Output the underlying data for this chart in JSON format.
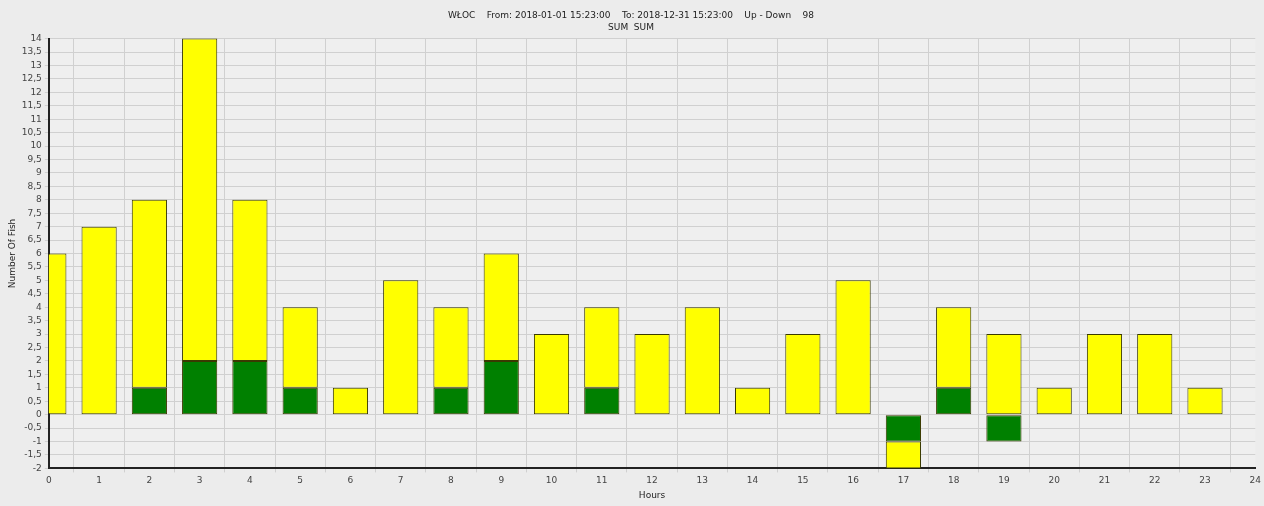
{
  "chart_data": {
    "type": "bar",
    "title": "WŁOC    From: 2018-01-01 15:23:00    To: 2018-12-31 15:23:00    Up - Down    98",
    "subtitle": "SUM  SUM",
    "xlabel": "Hours",
    "ylabel": "Number Of Fish",
    "x": [
      0,
      1,
      2,
      3,
      4,
      5,
      6,
      7,
      8,
      9,
      10,
      11,
      12,
      13,
      14,
      15,
      16,
      17,
      18,
      19,
      20,
      21,
      22,
      23
    ],
    "stacked": true,
    "series": [
      {
        "color": "#008000",
        "values": [
          null,
          null,
          1,
          2,
          2,
          1,
          null,
          null,
          1,
          2,
          null,
          1,
          null,
          null,
          null,
          null,
          null,
          -1,
          1,
          -1,
          null,
          null,
          null,
          null
        ]
      },
      {
        "color": "#ffff00",
        "values": [
          6,
          7,
          7,
          12,
          6,
          3,
          1,
          5,
          3,
          4,
          3,
          3,
          3,
          4,
          1,
          3,
          5,
          -1,
          3,
          3,
          1,
          3,
          3,
          1
        ]
      }
    ],
    "xlim": [
      0,
      24
    ],
    "xticks": [
      0,
      1,
      2,
      3,
      4,
      5,
      6,
      7,
      8,
      9,
      10,
      11,
      12,
      13,
      14,
      15,
      16,
      17,
      18,
      19,
      20,
      21,
      22,
      23,
      24
    ],
    "ylim": [
      -2,
      14
    ],
    "yticks": [
      -2,
      {
        "value": -1.5,
        "label": "-1,5"
      },
      -1,
      {
        "value": -0.5,
        "label": "-0,5"
      },
      0,
      {
        "value": 0.5,
        "label": "0,5"
      },
      1,
      {
        "value": 1.5,
        "label": "1,5"
      },
      2,
      {
        "value": 2.5,
        "label": "2,5"
      },
      3,
      {
        "value": 3.5,
        "label": "3,5"
      },
      4,
      {
        "value": 4.5,
        "label": "4,5"
      },
      5,
      {
        "value": 5.5,
        "label": "5,5"
      },
      6,
      {
        "value": 6.5,
        "label": "6,5"
      },
      7,
      {
        "value": 7.5,
        "label": "7,5"
      },
      8,
      {
        "value": 8.5,
        "label": "8,5"
      },
      9,
      {
        "value": 9.5,
        "label": "9,5"
      },
      10,
      {
        "value": 10.5,
        "label": "10,5"
      },
      11,
      {
        "value": 11.5,
        "label": "11,5"
      },
      12,
      {
        "value": 12.5,
        "label": "12,5"
      },
      13,
      {
        "value": 13.5,
        "label": "13,5"
      },
      14
    ],
    "grid": true,
    "legend": false
  }
}
